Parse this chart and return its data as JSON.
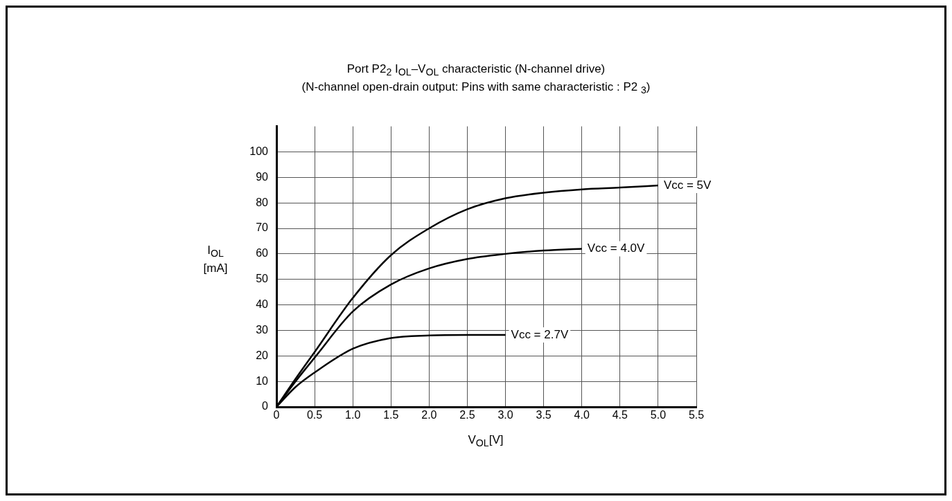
{
  "chart_data": {
    "type": "line",
    "title": "Port P2$_{2}$   I$_{OL}$–V$_{OL}$ characteristic (N-channel drive)",
    "subtitle": "(N-channel open-drain output:  Pins with same characteristic :  P2 $_{3}$)",
    "xlabel": "V$_{OL}$[V]",
    "ylabel": "I$_{OL}$\n[mA]",
    "xlim": [
      0,
      5.5
    ],
    "xticks": [
      0,
      0.5,
      {
        "value": 1,
        "label": "1.0"
      },
      1.5,
      {
        "value": 2,
        "label": "2.0"
      },
      2.5,
      {
        "value": 3,
        "label": "3.0"
      },
      3.5,
      {
        "value": 4,
        "label": "4.0"
      },
      4.5,
      {
        "value": 5,
        "label": "5.0"
      },
      5.5
    ],
    "ylim": [
      0,
      110
    ],
    "yticks": [
      0,
      10,
      20,
      30,
      40,
      50,
      60,
      70,
      80,
      90,
      100
    ],
    "grid": true,
    "legend": false,
    "marker": "none",
    "line_style": "solid",
    "series": [
      {
        "name": "Vcc = 5V",
        "color": "#000000",
        "x": [
          0,
          0.25,
          0.5,
          1,
          1.5,
          2,
          2.5,
          3,
          3.5,
          4,
          4.5,
          5
        ],
        "values": [
          0,
          11,
          21.5,
          42.7,
          59.5,
          70,
          77.5,
          81.8,
          84,
          85.3,
          86,
          86.8
        ]
      },
      {
        "name": "Vcc = 4.0V",
        "color": "#000000",
        "x": [
          0,
          0.25,
          0.5,
          1,
          1.5,
          2,
          2.5,
          3,
          3.5,
          4
        ],
        "values": [
          0,
          10,
          19.3,
          37.4,
          48,
          54.3,
          58,
          60,
          61.3,
          62
        ]
      },
      {
        "name": "Vcc = 2.7V",
        "color": "#000000",
        "x": [
          0,
          0.25,
          0.5,
          1,
          1.5,
          2,
          2.5,
          3
        ],
        "values": [
          0,
          7.8,
          13.5,
          22.8,
          27,
          28,
          28.2,
          28.2
        ]
      }
    ]
  }
}
